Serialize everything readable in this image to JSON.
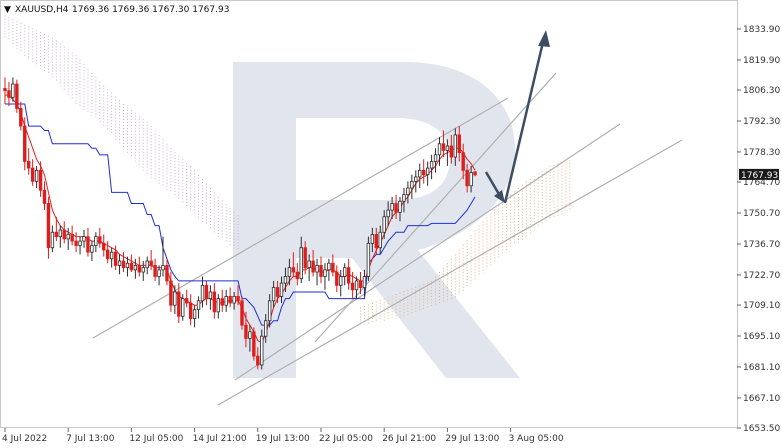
{
  "header": {
    "symbol": "XAUUSD,H4",
    "ohlc": "1769.36 1769.36 1767.30 1767.93"
  },
  "colors": {
    "bull_candle": "#2c2c2c",
    "bear_candle": "#e01c1c",
    "tenkan": "#e32020",
    "kijun": "#1f2fd6",
    "cloud_a": "#e8a060",
    "cloud_b": "#b8a0d0",
    "channel": "#b0b0b0",
    "arrow": "#3d4d63",
    "watermark": "#c8d2e0",
    "price_tag_bg": "#1a1a1a"
  },
  "chart_data": {
    "type": "candlestick",
    "title": "",
    "xlabel": "",
    "ylabel": "",
    "ylim": [
      1653.5,
      1847.0
    ],
    "y_ticks": [
      1833.9,
      1819.9,
      1806.3,
      1792.3,
      1778.3,
      1764.7,
      1750.7,
      1736.7,
      1722.7,
      1709.1,
      1695.1,
      1681.1,
      1667.1,
      1653.5
    ],
    "x_ticks": [
      "4 Jul 2022",
      "7 Jul 13:00",
      "12 Jul 05:00",
      "14 Jul 21:00",
      "19 Jul 13:00",
      "22 Jul 05:00",
      "26 Jul 21:00",
      "29 Jul 13:00",
      "3 Aug 05:00"
    ],
    "x_tick_index": [
      0,
      16,
      32,
      48,
      64,
      80,
      96,
      112,
      128
    ],
    "last_price_label": "1767.93",
    "last_price": 1767.93,
    "candles": [
      [
        1807,
        1812,
        1800,
        1806
      ],
      [
        1806,
        1810,
        1799,
        1803
      ],
      [
        1803,
        1812,
        1801,
        1809
      ],
      [
        1809,
        1811,
        1796,
        1798
      ],
      [
        1798,
        1801,
        1788,
        1790
      ],
      [
        1790,
        1794,
        1770,
        1774
      ],
      [
        1774,
        1780,
        1768,
        1771
      ],
      [
        1771,
        1775,
        1763,
        1765
      ],
      [
        1765,
        1772,
        1762,
        1770
      ],
      [
        1770,
        1774,
        1758,
        1761
      ],
      [
        1761,
        1765,
        1752,
        1755
      ],
      [
        1755,
        1758,
        1730,
        1735
      ],
      [
        1735,
        1745,
        1733,
        1742
      ],
      [
        1742,
        1749,
        1738,
        1740
      ],
      [
        1740,
        1745,
        1735,
        1743
      ],
      [
        1743,
        1747,
        1737,
        1739
      ],
      [
        1739,
        1744,
        1734,
        1741
      ],
      [
        1741,
        1745,
        1736,
        1738
      ],
      [
        1738,
        1742,
        1733,
        1736
      ],
      [
        1736,
        1740,
        1732,
        1738
      ],
      [
        1738,
        1743,
        1735,
        1740
      ],
      [
        1740,
        1744,
        1731,
        1733
      ],
      [
        1733,
        1738,
        1729,
        1736
      ],
      [
        1736,
        1742,
        1733,
        1740
      ],
      [
        1740,
        1744,
        1735,
        1737
      ],
      [
        1737,
        1741,
        1731,
        1734
      ],
      [
        1734,
        1738,
        1728,
        1730
      ],
      [
        1730,
        1735,
        1726,
        1733
      ],
      [
        1733,
        1736,
        1725,
        1727
      ],
      [
        1727,
        1732,
        1723,
        1729
      ],
      [
        1729,
        1733,
        1724,
        1726
      ],
      [
        1726,
        1731,
        1722,
        1728
      ],
      [
        1728,
        1732,
        1724,
        1725
      ],
      [
        1725,
        1730,
        1721,
        1727
      ],
      [
        1727,
        1731,
        1722,
        1724
      ],
      [
        1724,
        1729,
        1720,
        1726
      ],
      [
        1726,
        1731,
        1723,
        1729
      ],
      [
        1729,
        1734,
        1725,
        1727
      ],
      [
        1727,
        1730,
        1720,
        1722
      ],
      [
        1722,
        1727,
        1718,
        1725
      ],
      [
        1725,
        1740,
        1722,
        1727
      ],
      [
        1727,
        1730,
        1718,
        1720
      ],
      [
        1720,
        1724,
        1706,
        1709
      ],
      [
        1709,
        1718,
        1705,
        1715
      ],
      [
        1715,
        1719,
        1701,
        1704
      ],
      [
        1704,
        1714,
        1702,
        1712
      ],
      [
        1712,
        1716,
        1708,
        1710
      ],
      [
        1710,
        1714,
        1700,
        1703
      ],
      [
        1703,
        1709,
        1699,
        1707
      ],
      [
        1707,
        1713,
        1703,
        1711
      ],
      [
        1711,
        1722,
        1708,
        1718
      ],
      [
        1718,
        1720,
        1709,
        1712
      ],
      [
        1712,
        1718,
        1707,
        1715
      ],
      [
        1715,
        1719,
        1703,
        1706
      ],
      [
        1706,
        1714,
        1703,
        1712
      ],
      [
        1712,
        1716,
        1706,
        1709
      ],
      [
        1709,
        1716,
        1706,
        1713
      ],
      [
        1713,
        1717,
        1708,
        1710
      ],
      [
        1710,
        1715,
        1707,
        1713
      ],
      [
        1713,
        1718,
        1709,
        1711
      ],
      [
        1711,
        1713,
        1698,
        1700
      ],
      [
        1700,
        1706,
        1690,
        1694
      ],
      [
        1694,
        1700,
        1688,
        1697
      ],
      [
        1697,
        1699,
        1684,
        1686
      ],
      [
        1686,
        1690,
        1680,
        1682
      ],
      [
        1682,
        1698,
        1680,
        1695
      ],
      [
        1695,
        1705,
        1692,
        1702
      ],
      [
        1702,
        1714,
        1699,
        1711
      ],
      [
        1711,
        1720,
        1708,
        1717
      ],
      [
        1717,
        1720,
        1710,
        1713
      ],
      [
        1713,
        1722,
        1710,
        1719
      ],
      [
        1719,
        1726,
        1715,
        1722
      ],
      [
        1722,
        1730,
        1718,
        1726
      ],
      [
        1726,
        1733,
        1722,
        1724
      ],
      [
        1724,
        1728,
        1718,
        1721
      ],
      [
        1721,
        1740,
        1719,
        1735
      ],
      [
        1735,
        1738,
        1723,
        1726
      ],
      [
        1726,
        1732,
        1720,
        1729
      ],
      [
        1729,
        1734,
        1722,
        1724
      ],
      [
        1724,
        1730,
        1718,
        1727
      ],
      [
        1727,
        1731,
        1719,
        1722
      ],
      [
        1722,
        1728,
        1716,
        1725
      ],
      [
        1725,
        1730,
        1720,
        1728
      ],
      [
        1728,
        1732,
        1722,
        1724
      ],
      [
        1724,
        1727,
        1715,
        1718
      ],
      [
        1718,
        1725,
        1713,
        1722
      ],
      [
        1722,
        1728,
        1718,
        1726
      ],
      [
        1726,
        1730,
        1716,
        1719
      ],
      [
        1719,
        1724,
        1712,
        1716
      ],
      [
        1716,
        1722,
        1712,
        1720
      ],
      [
        1720,
        1724,
        1714,
        1717
      ],
      [
        1717,
        1725,
        1713,
        1722
      ],
      [
        1722,
        1740,
        1720,
        1737
      ],
      [
        1737,
        1744,
        1733,
        1741
      ],
      [
        1741,
        1744,
        1732,
        1735
      ],
      [
        1735,
        1745,
        1732,
        1742
      ],
      [
        1742,
        1752,
        1739,
        1749
      ],
      [
        1749,
        1756,
        1745,
        1752
      ],
      [
        1752,
        1758,
        1748,
        1755
      ],
      [
        1755,
        1759,
        1748,
        1751
      ],
      [
        1751,
        1758,
        1747,
        1756
      ],
      [
        1756,
        1762,
        1751,
        1759
      ],
      [
        1759,
        1765,
        1755,
        1762
      ],
      [
        1762,
        1768,
        1757,
        1765
      ],
      [
        1765,
        1770,
        1760,
        1767
      ],
      [
        1767,
        1773,
        1762,
        1770
      ],
      [
        1770,
        1775,
        1764,
        1768
      ],
      [
        1768,
        1774,
        1763,
        1771
      ],
      [
        1771,
        1777,
        1766,
        1774
      ],
      [
        1774,
        1780,
        1769,
        1777
      ],
      [
        1777,
        1785,
        1772,
        1782
      ],
      [
        1782,
        1788,
        1776,
        1779
      ],
      [
        1779,
        1784,
        1772,
        1781
      ],
      [
        1781,
        1786,
        1773,
        1776
      ],
      [
        1776,
        1789,
        1772,
        1786
      ],
      [
        1786,
        1790,
        1774,
        1778
      ],
      [
        1778,
        1782,
        1766,
        1770
      ],
      [
        1770,
        1773,
        1760,
        1763
      ],
      [
        1763,
        1772,
        1760,
        1769
      ],
      [
        1769.36,
        1769.36,
        1767.3,
        1767.93
      ]
    ],
    "tenkan": [
      1804,
      1804,
      1802,
      1800,
      1796,
      1790,
      1785,
      1780,
      1775,
      1772,
      1768,
      1760,
      1752,
      1748,
      1745,
      1743,
      1742,
      1741,
      1740,
      1740,
      1740,
      1739,
      1738,
      1738,
      1738,
      1737,
      1736,
      1735,
      1734,
      1732,
      1731,
      1730,
      1729,
      1728,
      1727,
      1727,
      1727,
      1727,
      1726,
      1726,
      1726,
      1725,
      1720,
      1716,
      1713,
      1712,
      1711,
      1710,
      1709,
      1709,
      1711,
      1712,
      1712,
      1711,
      1710,
      1710,
      1711,
      1711,
      1711,
      1711,
      1708,
      1703,
      1700,
      1697,
      1693,
      1692,
      1696,
      1702,
      1708,
      1712,
      1714,
      1717,
      1720,
      1722,
      1722,
      1725,
      1725,
      1726,
      1726,
      1725,
      1724,
      1724,
      1725,
      1725,
      1724,
      1722,
      1722,
      1723,
      1722,
      1721,
      1720,
      1720,
      1725,
      1730,
      1734,
      1737,
      1741,
      1745,
      1749,
      1751,
      1753,
      1756,
      1758,
      1761,
      1764,
      1766,
      1767,
      1768,
      1770,
      1772,
      1775,
      1777,
      1778,
      1779,
      1780,
      1780,
      1778,
      1775,
      1773,
      1770
    ],
    "kijun": [
      1800,
      1800,
      1800,
      1800,
      1800,
      1800,
      1790,
      1790,
      1790,
      1790,
      1788,
      1788,
      1782,
      1782,
      1782,
      1782,
      1782,
      1782,
      1782,
      1782,
      1782,
      1782,
      1780,
      1780,
      1777,
      1777,
      1777,
      1760,
      1760,
      1760,
      1760,
      1760,
      1755,
      1755,
      1755,
      1755,
      1750,
      1750,
      1745,
      1745,
      1735,
      1730,
      1725,
      1722,
      1720,
      1720,
      1720,
      1720,
      1720,
      1720,
      1720,
      1720,
      1720,
      1720,
      1720,
      1720,
      1720,
      1720,
      1720,
      1720,
      1712,
      1712,
      1710,
      1708,
      1704,
      1700,
      1700,
      1700,
      1702,
      1702,
      1708,
      1712,
      1712,
      1715,
      1715,
      1715,
      1715,
      1715,
      1715,
      1715,
      1715,
      1715,
      1712,
      1712,
      1712,
      1712,
      1712,
      1712,
      1712,
      1712,
      1712,
      1712,
      1728,
      1730,
      1732,
      1732,
      1735,
      1738,
      1740,
      1742,
      1742,
      1742,
      1745,
      1745,
      1745,
      1745,
      1745,
      1745,
      1746,
      1746,
      1746,
      1746,
      1746,
      1746,
      1746,
      1748,
      1750,
      1752,
      1755,
      1758
    ]
  }
}
